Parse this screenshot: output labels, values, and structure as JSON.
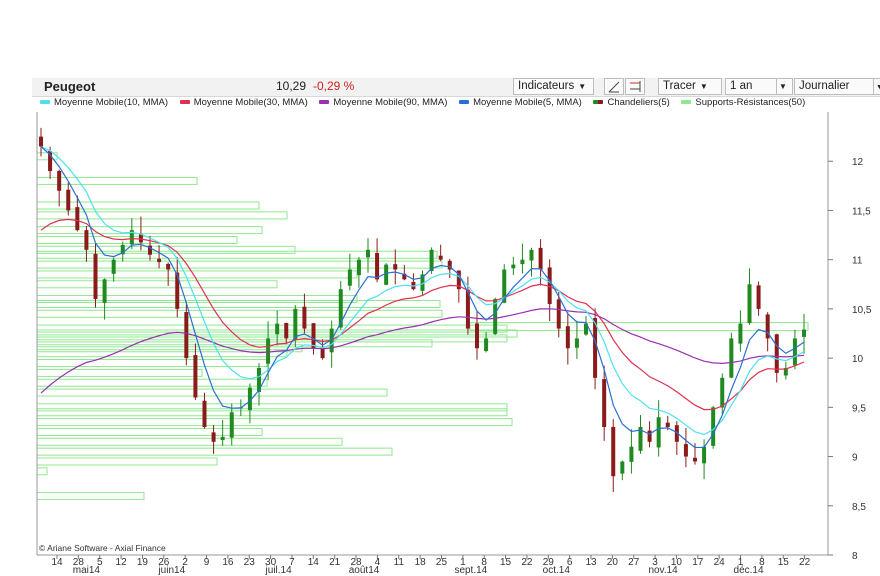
{
  "header": {
    "name": "Peugeot",
    "price": "10,29",
    "change": "-0,29 %",
    "indicators_label": "Indicateurs",
    "draw_label": "Tracer",
    "period_label": "1 an",
    "interval_label": "Journalier"
  },
  "copyright": "© Ariane Software - Axial Finance",
  "colors": {
    "mm10": "#4de0f0",
    "mm30": "#e03050",
    "mm90": "#9a30b0",
    "mm5": "#2a70d0",
    "candles": "#1f8a1f",
    "supports": "#8fe88f",
    "candle_up": "#1f8a1f",
    "candle_down": "#8b1a1a"
  },
  "chart_data": {
    "type": "line",
    "title": "Peugeot",
    "legend": [
      {
        "name": "Moyenne Mobile(10, MMA)",
        "color": "#4de0f0"
      },
      {
        "name": "Moyenne Mobile(30, MMA)",
        "color": "#e03050"
      },
      {
        "name": "Moyenne Mobile(90, MMA)",
        "color": "#9a30b0"
      },
      {
        "name": "Moyenne Mobile(5, MMA)",
        "color": "#2a70d0"
      },
      {
        "name": "Chandeliers(5)",
        "color": "#1f8a1f"
      },
      {
        "name": "Supports-Résistances(50)",
        "color": "#8fe88f"
      }
    ],
    "y_axis": {
      "side": "right",
      "ylim": [
        8,
        12.5
      ],
      "ticks": [
        8,
        8.5,
        9,
        9.5,
        10,
        10.5,
        11,
        11.5,
        12
      ],
      "tick_labels": [
        "8",
        "8,5",
        "9",
        "9,5",
        "10",
        "10,5",
        "11",
        "11,5",
        "12"
      ]
    },
    "x_axis": {
      "day_labels": [
        "14",
        "28",
        "5",
        "12",
        "19",
        "26",
        "2",
        "9",
        "16",
        "23",
        "30",
        "7",
        "14",
        "21",
        "28",
        "4",
        "11",
        "18",
        "25",
        "1",
        "8",
        "15",
        "22",
        "29",
        "6",
        "13",
        "20",
        "27",
        "3",
        "10",
        "17",
        "24",
        "1",
        "8",
        "15",
        "22"
      ],
      "month_labels": [
        {
          "label": "mai14",
          "at_day_index": 1
        },
        {
          "label": "juin14",
          "at_day_index": 5
        },
        {
          "label": "juil.14",
          "at_day_index": 10
        },
        {
          "label": "août14",
          "at_day_index": 14
        },
        {
          "label": "sept.14",
          "at_day_index": 19
        },
        {
          "label": "oct.14",
          "at_day_index": 23
        },
        {
          "label": "nov.14",
          "at_day_index": 28
        },
        {
          "label": "déc.14",
          "at_day_index": 32
        }
      ]
    },
    "grid": false,
    "candles_summary": {
      "approx_path": [
        [
          0,
          12.15
        ],
        [
          1,
          11.9
        ],
        [
          3,
          11.5
        ],
        [
          5,
          11.1
        ],
        [
          6,
          10.6
        ],
        [
          8,
          11.0
        ],
        [
          10,
          11.3
        ],
        [
          12,
          11.05
        ],
        [
          14,
          10.9
        ],
        [
          15,
          10.5
        ],
        [
          16,
          10.0
        ],
        [
          17,
          9.6
        ],
        [
          18,
          9.3
        ],
        [
          19,
          9.15
        ],
        [
          20,
          9.2
        ],
        [
          21,
          9.45
        ],
        [
          22,
          9.5
        ],
        [
          23,
          9.7
        ],
        [
          24,
          9.9
        ],
        [
          25,
          10.2
        ],
        [
          26,
          10.35
        ],
        [
          27,
          10.2
        ],
        [
          28,
          10.5
        ],
        [
          29,
          10.3
        ],
        [
          30,
          10.1
        ],
        [
          31,
          10.0
        ],
        [
          32,
          10.3
        ],
        [
          33,
          10.7
        ],
        [
          34,
          10.9
        ],
        [
          35,
          11.0
        ],
        [
          36,
          11.1
        ],
        [
          37,
          10.8
        ],
        [
          38,
          10.95
        ],
        [
          39,
          10.9
        ],
        [
          40,
          10.8
        ],
        [
          41,
          10.7
        ],
        [
          42,
          10.85
        ],
        [
          43,
          11.1
        ],
        [
          44,
          11.0
        ],
        [
          45,
          10.9
        ],
        [
          46,
          10.7
        ],
        [
          47,
          10.3
        ],
        [
          48,
          10.1
        ],
        [
          49,
          10.2
        ],
        [
          50,
          10.6
        ],
        [
          51,
          10.9
        ],
        [
          52,
          10.95
        ],
        [
          53,
          11.0
        ],
        [
          54,
          11.1
        ],
        [
          55,
          10.9
        ],
        [
          56,
          10.55
        ],
        [
          57,
          10.3
        ],
        [
          58,
          10.1
        ],
        [
          59,
          10.2
        ],
        [
          60,
          10.35
        ],
        [
          61,
          9.8
        ],
        [
          62,
          9.3
        ],
        [
          63,
          8.8
        ],
        [
          64,
          8.95
        ],
        [
          65,
          9.1
        ],
        [
          66,
          9.3
        ],
        [
          67,
          9.15
        ],
        [
          68,
          9.4
        ],
        [
          69,
          9.3
        ],
        [
          70,
          9.15
        ],
        [
          71,
          9.0
        ],
        [
          72,
          8.95
        ],
        [
          73,
          9.1
        ],
        [
          74,
          9.5
        ],
        [
          75,
          9.8
        ],
        [
          76,
          10.2
        ],
        [
          77,
          10.35
        ],
        [
          78,
          10.75
        ],
        [
          79,
          10.5
        ],
        [
          80,
          10.2
        ],
        [
          81,
          9.85
        ],
        [
          82,
          9.9
        ],
        [
          83,
          10.2
        ],
        [
          84,
          10.29
        ]
      ]
    },
    "support_resistance_levels": [
      12.05,
      11.8,
      11.55,
      11.45,
      11.3,
      11.2,
      11.1,
      11.05,
      10.95,
      10.85,
      10.75,
      10.6,
      10.55,
      10.45,
      10.3,
      10.25,
      10.2,
      10.15,
      10.1,
      10.05,
      9.95,
      9.85,
      9.75,
      9.65,
      9.5,
      9.45,
      9.35,
      9.25,
      9.15,
      9.05,
      8.95,
      8.85,
      8.6
    ]
  }
}
